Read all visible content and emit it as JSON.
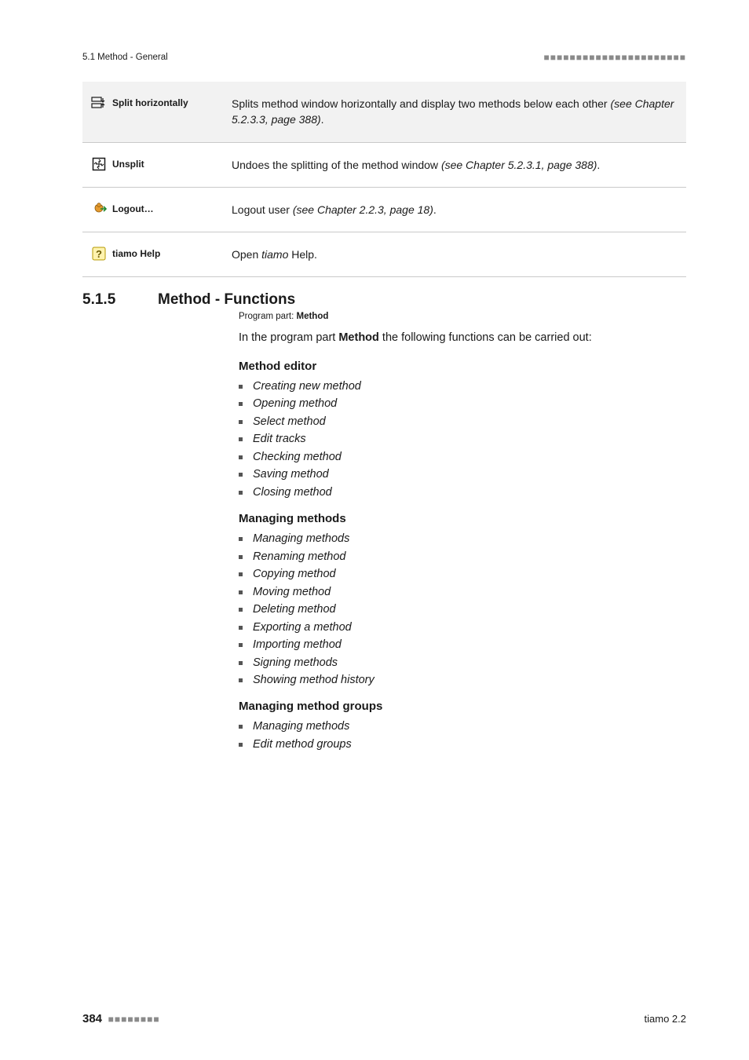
{
  "header": {
    "sectionLabel": "5.1 Method - General",
    "dots": "■■■■■■■■■■■■■■■■■■■■■■"
  },
  "defs": [
    {
      "term": "Split horizontally",
      "iconType": "split-h",
      "shaded": true,
      "plain": "Splits method window horizontally and display two methods below each other",
      "ital": "(see Chapter 5.2.3.3, page 388)",
      "tail": "."
    },
    {
      "term": "Unsplit",
      "iconType": "unsplit",
      "shaded": false,
      "plain": "Undoes the splitting of the method window ",
      "ital": "(see Chapter 5.2.3.1, page 388)",
      "tail": "."
    },
    {
      "term": "Logout…",
      "iconType": "logout",
      "shaded": false,
      "plain": "Logout user ",
      "ital": "(see Chapter 2.2.3, page 18)",
      "tail": "."
    },
    {
      "term": "tiamo Help",
      "iconType": "help",
      "shaded": false,
      "plain": "Open ",
      "ital": "tiamo",
      "tail": " Help."
    }
  ],
  "section": {
    "number": "5.1.5",
    "title": "Method - Functions",
    "programPartLabel": "Program part: ",
    "programPartValue": "Method",
    "intro_pre": "In the program part ",
    "intro_bold": "Method",
    "intro_post": " the following functions can be carried out:"
  },
  "blocks": [
    {
      "heading": "Method editor",
      "items": [
        "Creating new method",
        "Opening method",
        "Select method",
        "Edit tracks",
        "Checking method",
        "Saving method",
        "Closing method"
      ]
    },
    {
      "heading": "Managing methods",
      "items": [
        "Managing methods",
        "Renaming method",
        "Copying method",
        "Moving method",
        "Deleting method",
        "Exporting a method",
        "Importing method",
        "Signing methods",
        "Showing method history"
      ]
    },
    {
      "heading": "Managing method groups",
      "items": [
        "Managing methods",
        "Edit method groups"
      ]
    }
  ],
  "footer": {
    "page": "384",
    "dots": "■■■■■■■■",
    "right": "tiamo 2.2"
  },
  "icons": {
    "split-h": "split-horizontal-icon",
    "unsplit": "unsplit-icon",
    "logout": "logout-icon",
    "help": "help-icon"
  }
}
